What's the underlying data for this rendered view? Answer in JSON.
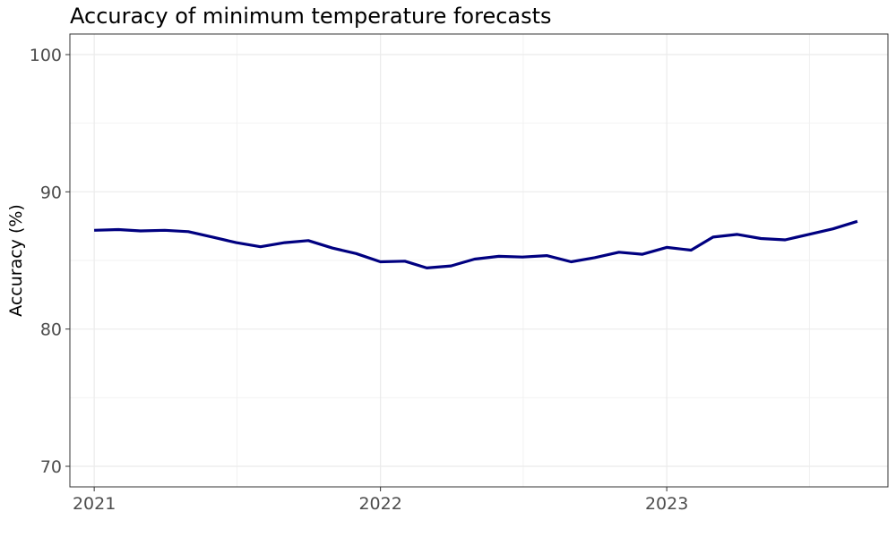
{
  "chart_data": {
    "type": "line",
    "title": "Accuracy of minimum temperature forecasts",
    "xlabel": "",
    "ylabel": "Accuracy (%)",
    "xlim": [
      "2020-12-01",
      "2023-10-10"
    ],
    "ylim": [
      68.5,
      101.5
    ],
    "y_ticks": [
      70,
      80,
      90,
      100
    ],
    "x_ticks": [
      {
        "date": "2021-01-01",
        "label": "2021"
      },
      {
        "date": "2022-01-01",
        "label": "2022"
      },
      {
        "date": "2023-01-01",
        "label": "2023"
      }
    ],
    "grid": true,
    "line_color": "#000080",
    "series": [
      {
        "points": [
          {
            "x": "2021-01-01",
            "y": 87.2
          },
          {
            "x": "2021-02-01",
            "y": 87.25
          },
          {
            "x": "2021-03-01",
            "y": 87.15
          },
          {
            "x": "2021-04-01",
            "y": 87.2
          },
          {
            "x": "2021-05-01",
            "y": 87.1
          },
          {
            "x": "2021-06-01",
            "y": 86.7
          },
          {
            "x": "2021-07-01",
            "y": 86.3
          },
          {
            "x": "2021-08-01",
            "y": 86.0
          },
          {
            "x": "2021-09-01",
            "y": 86.3
          },
          {
            "x": "2021-10-01",
            "y": 86.45
          },
          {
            "x": "2021-11-01",
            "y": 85.9
          },
          {
            "x": "2021-12-01",
            "y": 85.5
          },
          {
            "x": "2022-01-01",
            "y": 84.9
          },
          {
            "x": "2022-02-01",
            "y": 84.95
          },
          {
            "x": "2022-03-01",
            "y": 84.45
          },
          {
            "x": "2022-04-01",
            "y": 84.6
          },
          {
            "x": "2022-05-01",
            "y": 85.1
          },
          {
            "x": "2022-06-01",
            "y": 85.3
          },
          {
            "x": "2022-07-01",
            "y": 85.25
          },
          {
            "x": "2022-08-01",
            "y": 85.35
          },
          {
            "x": "2022-09-01",
            "y": 84.9
          },
          {
            "x": "2022-10-01",
            "y": 85.2
          },
          {
            "x": "2022-11-01",
            "y": 85.6
          },
          {
            "x": "2022-12-01",
            "y": 85.45
          },
          {
            "x": "2023-01-01",
            "y": 85.95
          },
          {
            "x": "2023-02-01",
            "y": 85.75
          },
          {
            "x": "2023-03-01",
            "y": 86.7
          },
          {
            "x": "2023-04-01",
            "y": 86.9
          },
          {
            "x": "2023-05-01",
            "y": 86.6
          },
          {
            "x": "2023-06-01",
            "y": 86.5
          },
          {
            "x": "2023-07-01",
            "y": 86.9
          },
          {
            "x": "2023-08-01",
            "y": 87.3
          },
          {
            "x": "2023-09-01",
            "y": 87.85
          }
        ]
      }
    ]
  }
}
